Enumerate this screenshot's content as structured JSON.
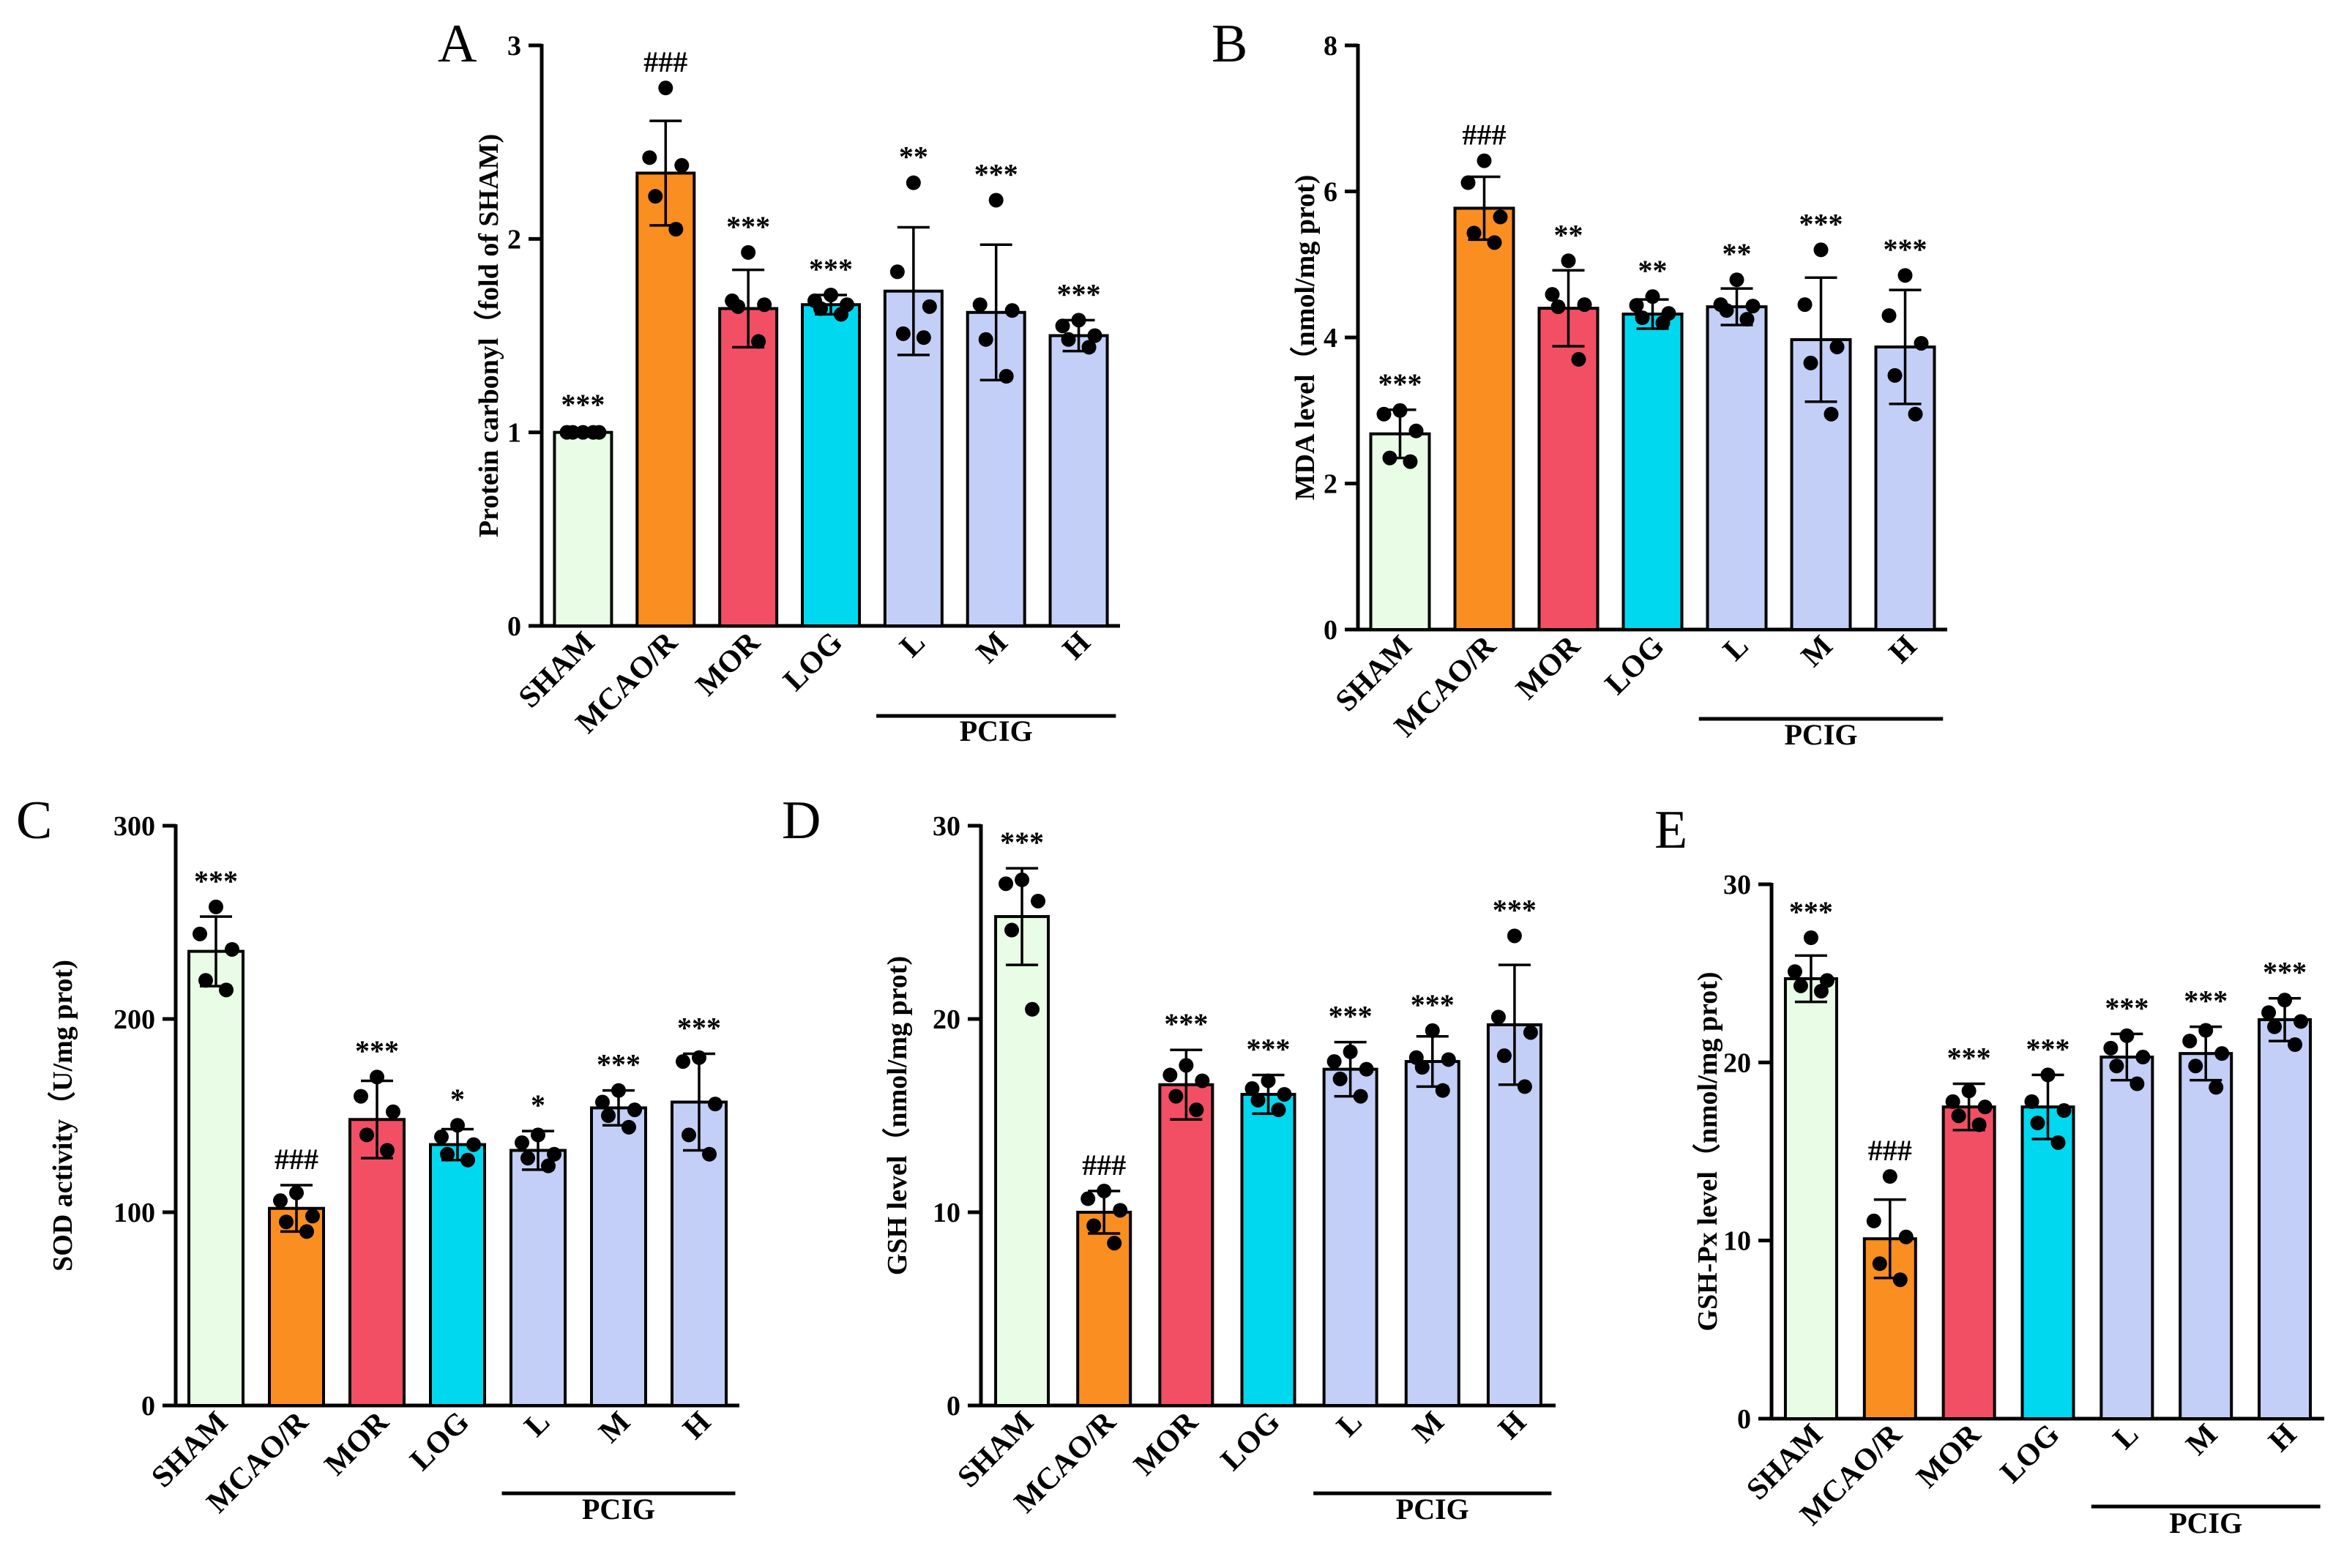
{
  "figure": {
    "group_label": "PCIG"
  },
  "chart_data": [
    {
      "type": "bar",
      "panel": "A",
      "ylabel": "Protein carbonyl（fold of SHAM)",
      "ylim": [
        0,
        3
      ],
      "ticks": [
        0,
        1,
        2,
        3
      ],
      "categories": [
        "SHAM",
        "MCAO/R",
        "MOR",
        "LOG",
        "L",
        "M",
        "H"
      ],
      "group_label": "PCIG",
      "group_members": [
        "L",
        "M",
        "H"
      ],
      "colors": [
        "#e8fce6",
        "#fa8e20",
        "#f24f65",
        "#00d8f0",
        "#c4cff7",
        "#c4cff7",
        "#c4cff7"
      ],
      "values": [
        1.0,
        2.34,
        1.64,
        1.66,
        1.73,
        1.62,
        1.5
      ],
      "errors": [
        0.01,
        0.27,
        0.2,
        0.05,
        0.33,
        0.35,
        0.08
      ],
      "points": [
        [
          1.0,
          1.0,
          1.0,
          1.0,
          1.0
        ],
        [
          2.78,
          2.42,
          2.38,
          2.22,
          2.05
        ],
        [
          1.93,
          1.68,
          1.66,
          1.65,
          1.47
        ],
        [
          1.71,
          1.68,
          1.66,
          1.64,
          1.61
        ],
        [
          2.29,
          1.83,
          1.65,
          1.51,
          1.49
        ],
        [
          2.2,
          1.66,
          1.63,
          1.48,
          1.29
        ],
        [
          1.58,
          1.55,
          1.5,
          1.48,
          1.44
        ]
      ],
      "significance": [
        "***",
        "###",
        "***",
        "***",
        "**",
        "***",
        "***"
      ]
    },
    {
      "type": "bar",
      "panel": "B",
      "ylabel": "MDA level（nmol/mg prot)",
      "ylim": [
        0,
        8
      ],
      "ticks": [
        0,
        2,
        4,
        6,
        8
      ],
      "categories": [
        "SHAM",
        "MCAO/R",
        "MOR",
        "LOG",
        "L",
        "M",
        "H"
      ],
      "group_label": "PCIG",
      "group_members": [
        "L",
        "M",
        "H"
      ],
      "colors": [
        "#e8fce6",
        "#fa8e20",
        "#f24f65",
        "#00d8f0",
        "#c4cff7",
        "#c4cff7",
        "#c4cff7"
      ],
      "values": [
        2.68,
        5.77,
        4.4,
        4.32,
        4.42,
        3.97,
        3.87
      ],
      "errors": [
        0.33,
        0.43,
        0.52,
        0.2,
        0.25,
        0.85,
        0.78
      ],
      "points": [
        [
          3.0,
          2.95,
          2.72,
          2.35,
          2.3
        ],
        [
          6.42,
          6.12,
          5.65,
          5.43,
          5.3
        ],
        [
          5.05,
          4.59,
          4.45,
          4.42,
          3.7
        ],
        [
          4.56,
          4.44,
          4.33,
          4.27,
          4.2
        ],
        [
          4.79,
          4.45,
          4.43,
          4.37,
          4.25
        ],
        [
          5.2,
          4.45,
          3.87,
          3.65,
          2.95
        ],
        [
          4.85,
          4.3,
          3.92,
          3.48,
          2.95
        ]
      ],
      "significance": [
        "***",
        "###",
        "**",
        "**",
        "**",
        "***",
        "***"
      ]
    },
    {
      "type": "bar",
      "panel": "C",
      "ylabel": "SOD activity（U/mg prot)",
      "ylim": [
        0,
        300
      ],
      "ticks": [
        0,
        100,
        200,
        300
      ],
      "categories": [
        "SHAM",
        "MCAO/R",
        "MOR",
        "LOG",
        "L",
        "M",
        "H"
      ],
      "group_label": "PCIG",
      "group_members": [
        "L",
        "M",
        "H"
      ],
      "colors": [
        "#e8fce6",
        "#fa8e20",
        "#f24f65",
        "#00d8f0",
        "#c4cff7",
        "#c4cff7",
        "#c4cff7"
      ],
      "values": [
        235,
        102,
        148,
        135,
        132,
        154,
        157
      ],
      "errors": [
        18,
        12,
        20,
        8,
        10,
        9,
        25
      ],
      "points": [
        [
          258,
          244,
          236,
          220,
          215
        ],
        [
          110,
          106,
          98,
          95,
          90
        ],
        [
          170,
          160,
          152,
          140,
          132
        ],
        [
          145,
          139,
          135,
          130,
          127
        ],
        [
          140,
          136,
          130,
          128,
          124
        ],
        [
          163,
          157,
          153,
          150,
          144
        ],
        [
          180,
          178,
          156,
          140,
          130
        ]
      ],
      "significance": [
        "***",
        "###",
        "***",
        "*",
        "*",
        "***",
        "***"
      ]
    },
    {
      "type": "bar",
      "panel": "D",
      "ylabel": "GSH level（nmol/mg prot)",
      "ylim": [
        0,
        30
      ],
      "ticks": [
        0,
        10,
        20,
        30
      ],
      "categories": [
        "SHAM",
        "MCAO/R",
        "MOR",
        "LOG",
        "L",
        "M",
        "H"
      ],
      "group_label": "PCIG",
      "group_members": [
        "L",
        "M",
        "H"
      ],
      "colors": [
        "#e8fce6",
        "#fa8e20",
        "#f24f65",
        "#00d8f0",
        "#c4cff7",
        "#c4cff7",
        "#c4cff7"
      ],
      "values": [
        25.3,
        10.0,
        16.6,
        16.1,
        17.4,
        17.8,
        19.7
      ],
      "errors": [
        2.5,
        1.1,
        1.8,
        1.0,
        1.4,
        1.3,
        3.1
      ],
      "points": [
        [
          27.2,
          27.0,
          26.1,
          24.6,
          20.5
        ],
        [
          11.1,
          10.7,
          10.1,
          9.3,
          8.4
        ],
        [
          17.6,
          17.1,
          16.8,
          16.0,
          15.3
        ],
        [
          16.8,
          16.4,
          16.1,
          15.8,
          15.3
        ],
        [
          18.3,
          17.8,
          17.4,
          16.9,
          16.0
        ],
        [
          19.4,
          18.0,
          17.9,
          17.5,
          16.3
        ],
        [
          24.3,
          20.1,
          19.3,
          18.1,
          16.5
        ]
      ],
      "significance": [
        "***",
        "###",
        "***",
        "***",
        "***",
        "***",
        "***"
      ]
    },
    {
      "type": "bar",
      "panel": "E",
      "ylabel": "GSH-Px level（nmol/mg prot)",
      "ylim": [
        0,
        30
      ],
      "ticks": [
        0,
        10,
        20,
        30
      ],
      "categories": [
        "SHAM",
        "MCAO/R",
        "MOR",
        "LOG",
        "L",
        "M",
        "H"
      ],
      "group_label": "PCIG",
      "group_members": [
        "L",
        "M",
        "H"
      ],
      "colors": [
        "#e8fce6",
        "#fa8e20",
        "#f24f65",
        "#00d8f0",
        "#c4cff7",
        "#c4cff7",
        "#c4cff7"
      ],
      "values": [
        24.7,
        10.1,
        17.5,
        17.5,
        20.3,
        20.5,
        22.4
      ],
      "errors": [
        1.3,
        2.2,
        1.3,
        1.8,
        1.3,
        1.5,
        1.2
      ],
      "points": [
        [
          27.0,
          25.1,
          24.6,
          24.3,
          24.0
        ],
        [
          13.6,
          11.1,
          10.2,
          8.7,
          7.8
        ],
        [
          18.4,
          17.8,
          17.5,
          17.0,
          16.5
        ],
        [
          19.3,
          17.8,
          17.3,
          16.6,
          15.5
        ],
        [
          21.5,
          20.8,
          20.3,
          19.8,
          18.8
        ],
        [
          21.8,
          21.2,
          20.5,
          19.8,
          18.6
        ],
        [
          23.5,
          22.8,
          22.3,
          22.0,
          21.0
        ]
      ],
      "significance": [
        "***",
        "###",
        "***",
        "***",
        "***",
        "***",
        "***"
      ]
    }
  ]
}
